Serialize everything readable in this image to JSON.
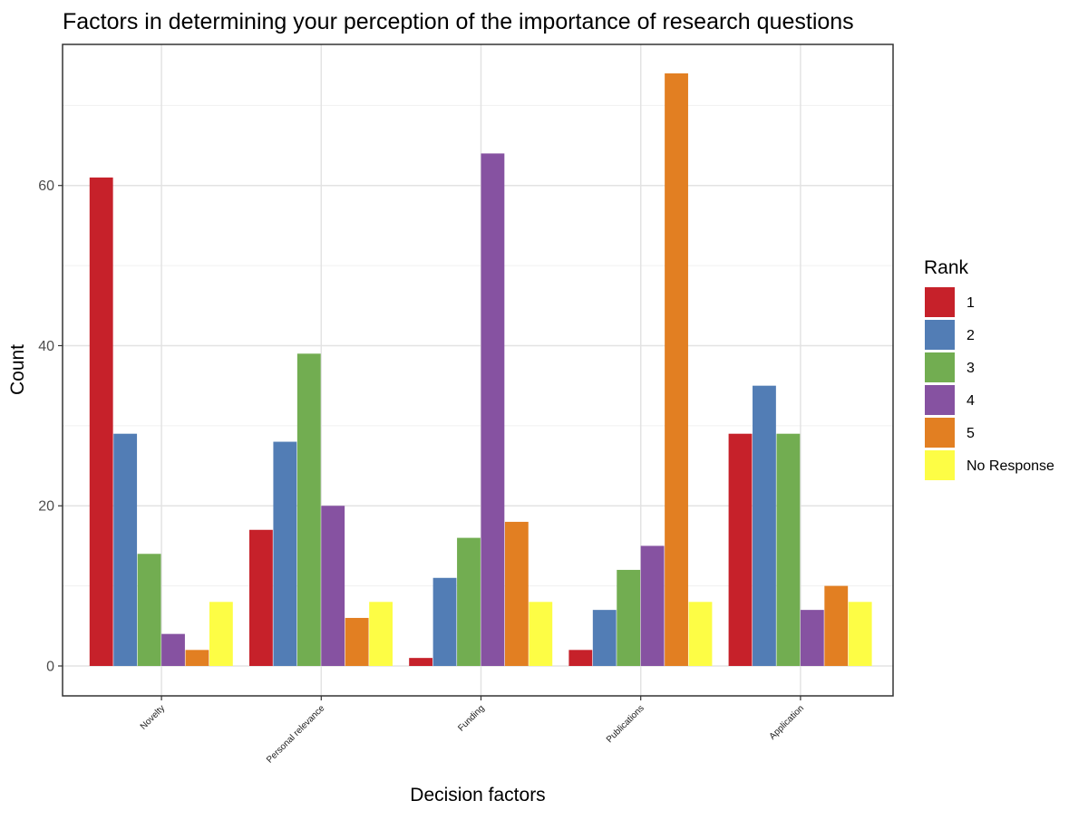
{
  "chart_data": {
    "type": "bar",
    "title": "Factors in determining your perception of the importance of research questions",
    "xlabel": "Decision factors",
    "ylabel": "Count",
    "ylim": [
      -3.7,
      74
    ],
    "yticks": [
      0,
      20,
      40,
      60
    ],
    "grid": true,
    "legend_position": "right",
    "categories": [
      "Novelty",
      "Personal relevance",
      "Funding",
      "Publications",
      "Application"
    ],
    "legend": {
      "title": "Rank"
    },
    "series": [
      {
        "name": "1",
        "color": "#c6212a",
        "values": [
          61,
          17,
          1,
          2,
          29
        ]
      },
      {
        "name": "2",
        "color": "#527db5",
        "values": [
          29,
          28,
          11,
          7,
          35
        ]
      },
      {
        "name": "3",
        "color": "#72ad51",
        "values": [
          14,
          39,
          16,
          12,
          29
        ]
      },
      {
        "name": "4",
        "color": "#8652a1",
        "values": [
          4,
          20,
          64,
          15,
          7
        ]
      },
      {
        "name": "5",
        "color": "#e27f22",
        "values": [
          2,
          6,
          18,
          74,
          10
        ]
      },
      {
        "name": "No Response",
        "color": "#fdfd45",
        "values": [
          8,
          8,
          8,
          8,
          8
        ]
      }
    ]
  }
}
